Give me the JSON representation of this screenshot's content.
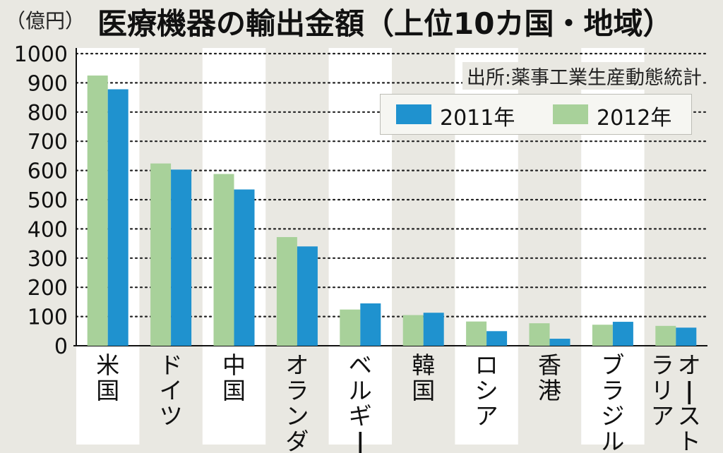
{
  "unit_label": "（億円）",
  "title": "医療機器の輸出金額（上位10カ国・地域）",
  "source": "出所:薬事工業生産動態統計",
  "colors": {
    "y2011": "#1f92cf",
    "y2012": "#a8d19a",
    "background": "#e9e8e2",
    "band": "#ffffff"
  },
  "chart_data": {
    "type": "bar",
    "title": "医療機器の輸出金額（上位10カ国・地域）",
    "ylabel": "（億円）",
    "ylim": [
      0,
      1000
    ],
    "yticks": [
      0,
      100,
      200,
      300,
      400,
      500,
      600,
      700,
      800,
      900,
      1000
    ],
    "grid": true,
    "legend_position": "top-right",
    "categories": [
      "米国",
      "ドイツ",
      "中国",
      "オランダ",
      "ベルギー",
      "韓国",
      "ロシア",
      "香港",
      "ブラジル",
      "オーストラリア"
    ],
    "series": [
      {
        "name": "2011年",
        "values": [
          878,
          603,
          535,
          340,
          145,
          113,
          50,
          24,
          82,
          62
        ]
      },
      {
        "name": "2012年",
        "values": [
          925,
          624,
          588,
          372,
          124,
          105,
          83,
          77,
          72,
          68
        ]
      }
    ]
  }
}
